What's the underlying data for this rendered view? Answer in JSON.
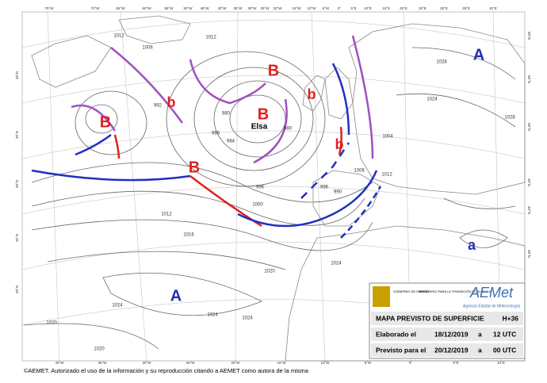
{
  "systems": [
    {
      "label": "A"
    },
    {
      "label": "B"
    },
    {
      "label": "b"
    },
    {
      "label": "B"
    },
    {
      "label": "Elsa"
    },
    {
      "label": "b"
    },
    {
      "label": "B"
    },
    {
      "label": "b"
    },
    {
      "label": "B"
    },
    {
      "label": "A"
    },
    {
      "label": "a"
    }
  ],
  "isobar_labels": [
    "1012",
    "1012",
    "1008",
    "992",
    "980",
    "984",
    "988",
    "980",
    "996",
    "1000",
    "1004",
    "1008",
    "1012",
    "1016",
    "1020",
    "1024",
    "1024",
    "1020",
    "1024",
    "1024",
    "1028",
    "1028",
    "1024",
    "1020",
    "1012",
    "990",
    "996"
  ],
  "lon_top": [
    "75°W",
    "70°W",
    "65°W",
    "60°W",
    "55°W",
    "50°W",
    "45°W",
    "40°W",
    "35°W",
    "30°W",
    "25°W",
    "20°W",
    "15°W",
    "10°W",
    "5°W",
    "0°",
    "5°E",
    "10°E",
    "15°E",
    "20°E",
    "25°E",
    "30°E",
    "35°E",
    "40°E"
  ],
  "lon_bottom": [
    "40°W",
    "35°W",
    "30°W",
    "25°W",
    "20°W",
    "15°W",
    "10°W",
    "5°W",
    "0°",
    "5°E",
    "10°E"
  ],
  "lat_left": [
    "40°N",
    "35°N",
    "30°N",
    "25°N",
    "20°N"
  ],
  "lat_right": [
    "60°N",
    "55°N",
    "50°N",
    "45°N",
    "40°N",
    "35°N"
  ],
  "info": {
    "gov": "GOBIERNO DE ESPAÑA",
    "ministry": "MINISTERIO PARA LA TRANSICIÓN ECOLÓGICA",
    "brand": "AEMet",
    "agency": "Agencia Estatal de Meteorología",
    "title": "MAPA PREVISTO DE SUPERFICIE",
    "step": "H+36",
    "rows": [
      [
        "Elaborado el",
        "18/12/2019",
        "a",
        "12 UTC"
      ],
      [
        "Previsto para el",
        "20/12/2019",
        "a",
        "00 UTC"
      ]
    ]
  },
  "footer": "©AEMET. Autorizado el uso de la información y su reproducción citando a AEMET como autora de la misma"
}
